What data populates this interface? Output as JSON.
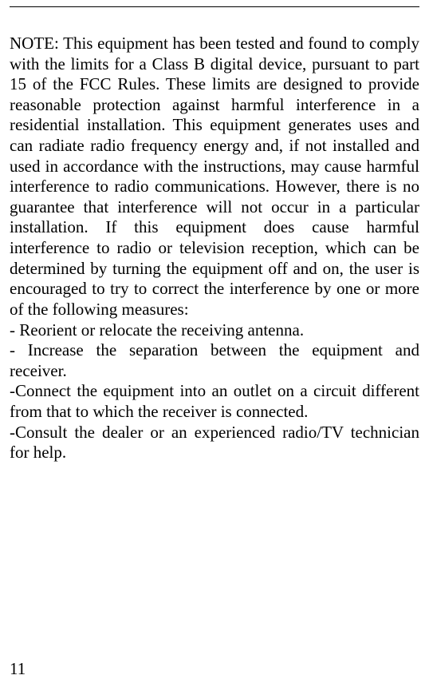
{
  "page": {
    "number": "11",
    "font_family": "Times New Roman",
    "font_size_pt": 16,
    "text_color": "#000000",
    "background_color": "#ffffff",
    "rule_color": "#000000"
  },
  "content": {
    "p1": "NOTE: This equipment has been tested and found to comply with the limits for a Class B digital device, pursuant to part 15 of the FCC Rules.   These limits are designed to provide reasonable protection against harmful interference in a residential installation.   This equipment generates uses and can radiate radio frequency energy and, if not installed and used in accordance with the instructions, may cause harmful interference to radio communications.   However, there is no guarantee that interference will not occur in a particular installation.   If this equipment does cause harmful interference to radio or television reception, which can be determined by turning the equipment off and on, the user is encouraged to try to correct the interference by one or more of the following measures:",
    "b1": "- Reorient or relocate the receiving antenna.",
    "b2": "- Increase the separation between the equipment and receiver.",
    "b3": "-Connect the equipment into an outlet on a circuit different from that to which the receiver is connected.",
    "b4": "-Consult the dealer or an experienced radio/TV technician for help."
  }
}
